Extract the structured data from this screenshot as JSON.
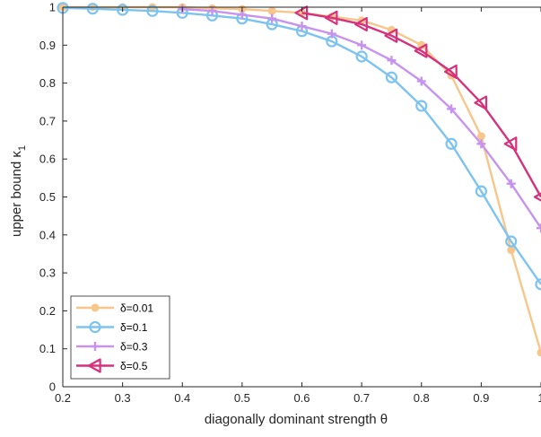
{
  "chart_data": {
    "type": "line",
    "xlabel": "diagonally dominant strength θ",
    "ylabel": "upper bound κ",
    "ylabel_subscript": "1",
    "xlim": [
      0.2,
      1.0
    ],
    "ylim": [
      0,
      1.0
    ],
    "x_ticks": [
      "0.2",
      "0.3",
      "0.4",
      "0.5",
      "0.6",
      "0.7",
      "0.8",
      "0.9",
      "1"
    ],
    "y_ticks": [
      "0",
      "0.1",
      "0.2",
      "0.3",
      "0.4",
      "0.5",
      "0.6",
      "0.7",
      "0.8",
      "0.9",
      "1"
    ],
    "grid": false,
    "legend_position": "bottom-left",
    "series": [
      {
        "name": "δ=0.01",
        "color": "#F8C68A",
        "marker": "dot",
        "x": [
          0.2,
          0.25,
          0.3,
          0.35,
          0.4,
          0.45,
          0.5,
          0.55,
          0.6,
          0.65,
          0.7,
          0.75,
          0.8,
          0.85,
          0.9,
          0.95,
          1.0
        ],
        "y": [
          1.0,
          1.0,
          1.0,
          1.0,
          1.0,
          0.997,
          0.995,
          0.99,
          0.985,
          0.975,
          0.965,
          0.94,
          0.9,
          0.82,
          0.66,
          0.36,
          0.09
        ]
      },
      {
        "name": "δ=0.1",
        "color": "#7DC3F0",
        "marker": "circle",
        "x": [
          0.2,
          0.25,
          0.3,
          0.35,
          0.4,
          0.45,
          0.5,
          0.55,
          0.6,
          0.65,
          0.7,
          0.75,
          0.8,
          0.85,
          0.9,
          0.95,
          1.0
        ],
        "y": [
          0.998,
          0.996,
          0.993,
          0.99,
          0.985,
          0.978,
          0.97,
          0.955,
          0.937,
          0.91,
          0.87,
          0.815,
          0.74,
          0.64,
          0.515,
          0.383,
          0.27
        ]
      },
      {
        "name": "δ=0.3",
        "color": "#C793EF",
        "marker": "plus",
        "x": [
          0.4,
          0.45,
          0.5,
          0.55,
          0.6,
          0.65,
          0.7,
          0.75,
          0.8,
          0.85,
          0.9,
          0.95,
          1.0
        ],
        "y": [
          0.995,
          0.99,
          0.98,
          0.97,
          0.95,
          0.93,
          0.9,
          0.86,
          0.805,
          0.732,
          0.64,
          0.535,
          0.418
        ]
      },
      {
        "name": "δ=0.5",
        "color": "#D6317D",
        "marker": "triangle-left",
        "x": [
          0.6,
          0.65,
          0.7,
          0.75,
          0.8,
          0.85,
          0.9,
          0.95,
          1.0
        ],
        "y": [
          0.985,
          0.972,
          0.955,
          0.925,
          0.885,
          0.83,
          0.748,
          0.64,
          0.5
        ]
      }
    ]
  }
}
